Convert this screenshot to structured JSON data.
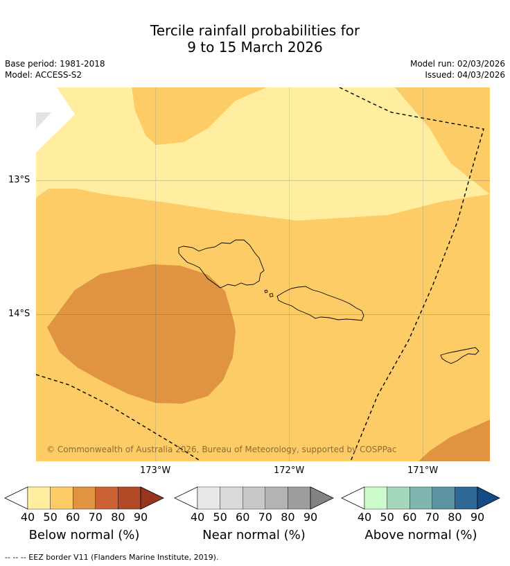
{
  "title_line1": "Tercile rainfall probabilities for",
  "title_line2": "9 to 15 March 2026",
  "base_period": "Base period: 1981-2018",
  "model": "Model: ACCESS-S2",
  "model_run": "Model run: 02/03/2026",
  "issued": "Issued: 04/03/2026",
  "axes": {
    "lat_labels": [
      "13°S",
      "14°S"
    ],
    "lon_labels": [
      "173°W",
      "172°W",
      "171°W"
    ]
  },
  "copyright": "© Commonwealth of Australia 2026, Bureau of Meteorology, supported by COSPPac",
  "colorbars": [
    {
      "label": "Below normal (%)",
      "ticks": [
        "40",
        "50",
        "60",
        "70",
        "80",
        "90"
      ],
      "colors": [
        "#ffeda0",
        "#fecc66",
        "#e09442",
        "#cc6233",
        "#b24a28",
        "#97351e"
      ]
    },
    {
      "label": "Near normal (%)",
      "ticks": [
        "40",
        "50",
        "60",
        "70",
        "80",
        "90"
      ],
      "colors": [
        "#e8e8e8",
        "#d9d9d9",
        "#c8c8c8",
        "#b3b3b3",
        "#9e9e9e",
        "#838383"
      ]
    },
    {
      "label": "Above normal (%)",
      "ticks": [
        "40",
        "50",
        "60",
        "70",
        "80",
        "90"
      ],
      "colors": [
        "#ccfacb",
        "#a3d6bb",
        "#7fb6b0",
        "#5b93a3",
        "#2f6796",
        "#144a88"
      ]
    }
  ],
  "footnote": "--  --  -- EEZ border V11 (Flanders Marine Institute, 2019)."
}
